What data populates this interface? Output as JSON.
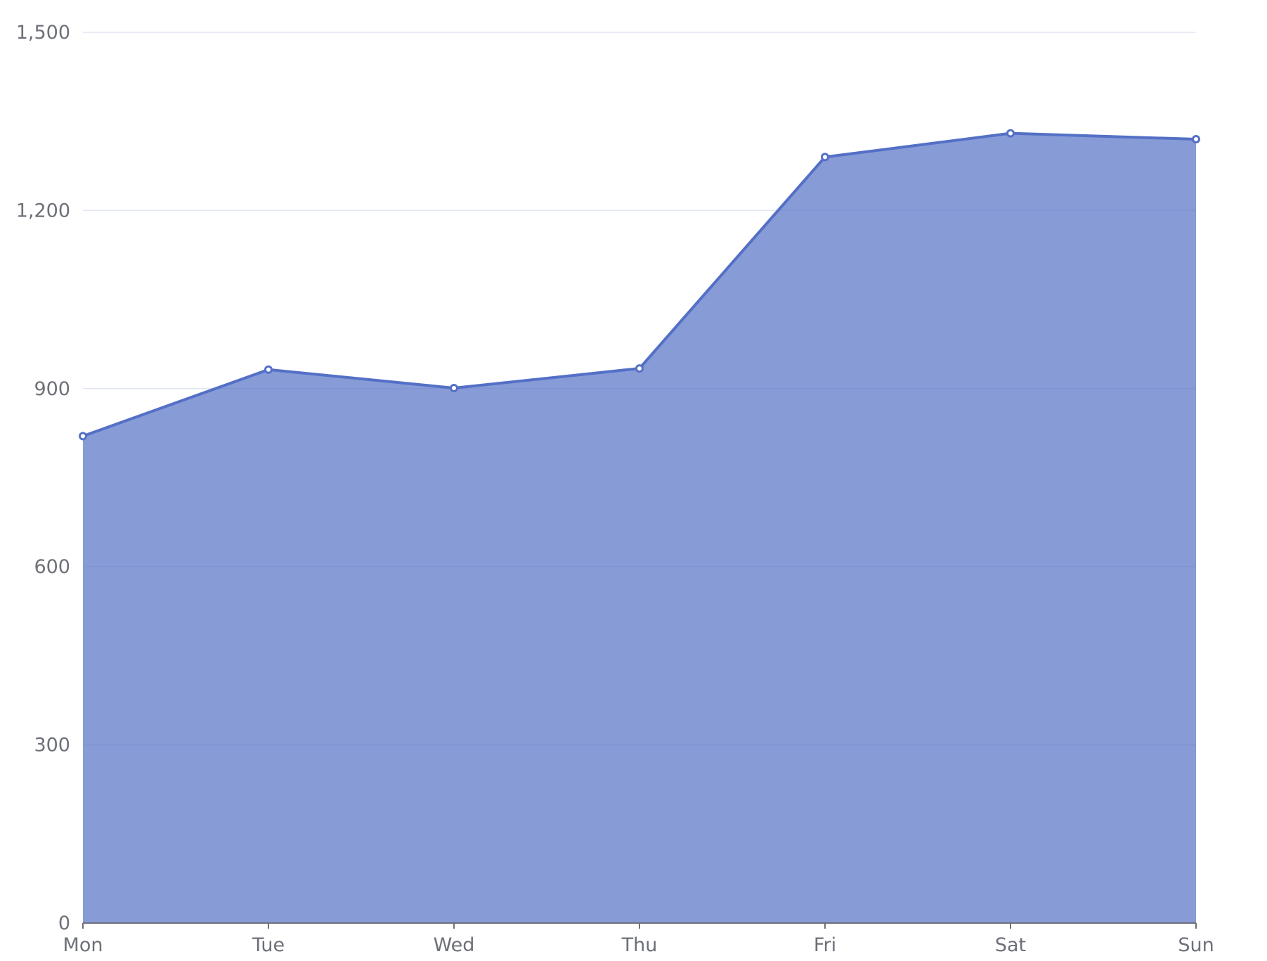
{
  "chart_data": {
    "type": "area",
    "categories": [
      "Mon",
      "Tue",
      "Wed",
      "Thu",
      "Fri",
      "Sat",
      "Sun"
    ],
    "series": [
      {
        "values": [
          820,
          932,
          901,
          934,
          1290,
          1330,
          1320
        ]
      }
    ],
    "title": "",
    "xlabel": "",
    "ylabel": "",
    "ylim": [
      0,
      1500
    ],
    "y_ticks": [
      0,
      300,
      600,
      900,
      1200,
      1500
    ],
    "y_tick_labels": [
      "0",
      "300",
      "600",
      "900",
      "1,200",
      "1,500"
    ],
    "grid": true,
    "colors": {
      "line": "#5470c6",
      "area": "#5470c6",
      "grid": "#e0e6f1",
      "axis": "#6e7079",
      "point_fill": "#ffffff"
    }
  }
}
